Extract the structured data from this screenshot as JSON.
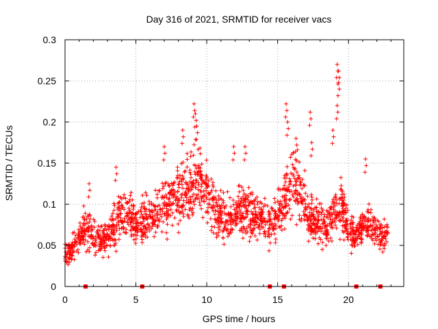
{
  "chart_data": {
    "type": "scatter",
    "title": "Day 316 of 2021, SRMTID for receiver vacs",
    "xlabel": "GPS time / hours",
    "ylabel": "SRMTID / TECUs",
    "xlim": [
      0,
      23.9
    ],
    "ylim": [
      0,
      0.3
    ],
    "x_ticks": [
      "0",
      "5",
      "10",
      "15",
      "20"
    ],
    "x_tick_values": [
      0,
      5,
      10,
      15,
      20
    ],
    "y_ticks": [
      "0",
      "0.05",
      "0.1",
      "0.15",
      "0.2",
      "0.25",
      "0.3"
    ],
    "y_tick_values": [
      0,
      0.05,
      0.1,
      0.15,
      0.2,
      0.25,
      0.3
    ],
    "grid": true,
    "marker": "+",
    "color": "#ff0000",
    "series": [
      {
        "name": "SRMTID",
        "trend": [
          [
            0,
            0.04
          ],
          [
            0.5,
            0.045
          ],
          [
            1,
            0.06
          ],
          [
            1.5,
            0.07
          ],
          [
            2,
            0.065
          ],
          [
            2.5,
            0.055
          ],
          [
            3,
            0.06
          ],
          [
            3.5,
            0.075
          ],
          [
            4,
            0.085
          ],
          [
            4.5,
            0.09
          ],
          [
            5,
            0.075
          ],
          [
            5.5,
            0.08
          ],
          [
            6,
            0.085
          ],
          [
            6.5,
            0.09
          ],
          [
            7,
            0.1
          ],
          [
            7.5,
            0.105
          ],
          [
            8,
            0.11
          ],
          [
            8.5,
            0.115
          ],
          [
            9,
            0.12
          ],
          [
            9.5,
            0.125
          ],
          [
            10,
            0.12
          ],
          [
            10.5,
            0.1
          ],
          [
            11,
            0.085
          ],
          [
            11.5,
            0.08
          ],
          [
            12,
            0.085
          ],
          [
            12.5,
            0.1
          ],
          [
            13,
            0.09
          ],
          [
            13.5,
            0.085
          ],
          [
            14,
            0.08
          ],
          [
            14.5,
            0.075
          ],
          [
            15,
            0.085
          ],
          [
            15.5,
            0.11
          ],
          [
            16,
            0.13
          ],
          [
            16.5,
            0.12
          ],
          [
            17,
            0.09
          ],
          [
            17.5,
            0.08
          ],
          [
            18,
            0.075
          ],
          [
            18.5,
            0.07
          ],
          [
            19,
            0.09
          ],
          [
            19.5,
            0.1
          ],
          [
            20,
            0.07
          ],
          [
            20.5,
            0.06
          ],
          [
            21,
            0.07
          ],
          [
            21.5,
            0.08
          ],
          [
            22,
            0.065
          ],
          [
            22.5,
            0.06
          ],
          [
            22.8,
            0.06
          ]
        ],
        "spikes": [
          [
            9.1,
            0.222
          ],
          [
            9.2,
            0.21
          ],
          [
            9.3,
            0.195
          ],
          [
            8.3,
            0.19
          ],
          [
            7.0,
            0.17
          ],
          [
            15.6,
            0.222
          ],
          [
            15.7,
            0.2
          ],
          [
            17.3,
            0.212
          ],
          [
            17.4,
            0.175
          ],
          [
            19.2,
            0.27
          ],
          [
            19.3,
            0.262
          ],
          [
            19.3,
            0.248
          ],
          [
            19.2,
            0.22
          ],
          [
            18.9,
            0.19
          ],
          [
            12.7,
            0.17
          ],
          [
            11.9,
            0.17
          ],
          [
            16.3,
            0.18
          ],
          [
            3.6,
            0.145
          ],
          [
            21.2,
            0.155
          ],
          [
            1.7,
            0.125
          ]
        ]
      }
    ],
    "gap_markers_x": [
      1.45,
      5.45,
      14.45,
      15.45,
      20.55,
      22.25
    ]
  }
}
